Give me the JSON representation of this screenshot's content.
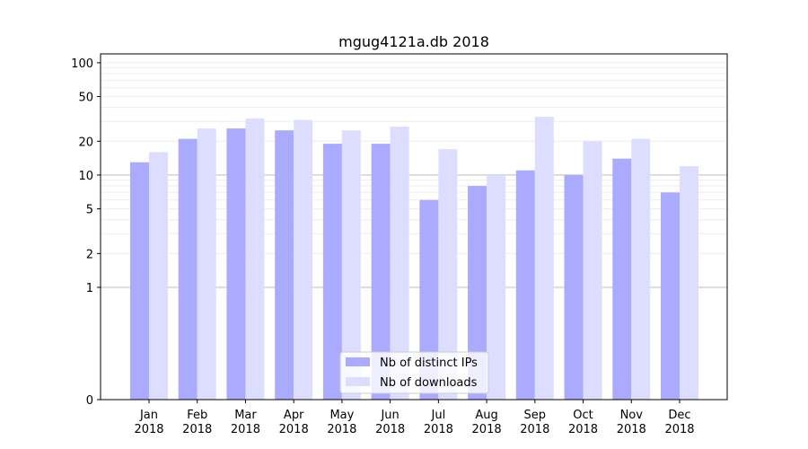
{
  "chart_data": {
    "type": "bar",
    "title": "mgug4121a.db 2018",
    "categories": [
      [
        "Jan",
        "2018"
      ],
      [
        "Feb",
        "2018"
      ],
      [
        "Mar",
        "2018"
      ],
      [
        "Apr",
        "2018"
      ],
      [
        "May",
        "2018"
      ],
      [
        "Jun",
        "2018"
      ],
      [
        "Jul",
        "2018"
      ],
      [
        "Aug",
        "2018"
      ],
      [
        "Sep",
        "2018"
      ],
      [
        "Oct",
        "2018"
      ],
      [
        "Nov",
        "2018"
      ],
      [
        "Dec",
        "2018"
      ]
    ],
    "series": [
      {
        "name": "Nb of distinct IPs",
        "color": "#aaaaff",
        "values": [
          13,
          21,
          26,
          25,
          19,
          19,
          6,
          8,
          11,
          10,
          14,
          7
        ]
      },
      {
        "name": "Nb of downloads",
        "color": "#ddddff",
        "values": [
          16,
          26,
          32,
          31,
          25,
          27,
          17,
          10,
          33,
          20,
          21,
          12
        ]
      }
    ],
    "y_scale": "symlog",
    "y_ticks": [
      0,
      1,
      2,
      5,
      10,
      20,
      50,
      100
    ],
    "ylim": [
      0,
      120
    ],
    "legend_position": "lower-center",
    "grid": true
  }
}
